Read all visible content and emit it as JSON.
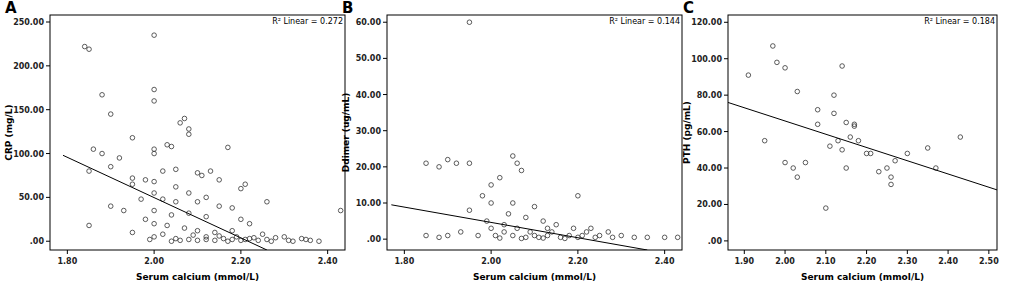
{
  "chart_data": [
    {
      "type": "scatter",
      "title": "A",
      "annotation": "R² Linear = 0.272",
      "x_label": "Serum calcium (mmol/L)",
      "y_label": "CRP (mg/L)",
      "xlim": [
        1.76,
        2.44
      ],
      "ylim": [
        -10,
        258
      ],
      "xticks": [
        {
          "value": 1.8,
          "label": "1.80"
        },
        {
          "value": 2.0,
          "label": "2.00"
        },
        {
          "value": 2.2,
          "label": "2.20"
        },
        {
          "value": 2.4,
          "label": "2.40"
        }
      ],
      "yticks": [
        {
          "value": 0,
          "label": ".00"
        },
        {
          "value": 50,
          "label": "50.00"
        },
        {
          "value": 100,
          "label": "100.00"
        },
        {
          "value": 150,
          "label": "150.00"
        },
        {
          "value": 200,
          "label": "200.00"
        },
        {
          "value": 250,
          "label": "250.00"
        }
      ],
      "marker": "circle",
      "color": "#333333",
      "x": [
        1.84,
        1.85,
        2.0,
        2.0,
        1.88,
        2.0,
        1.9,
        2.07,
        2.06,
        2.08,
        2.08,
        1.95,
        2.03,
        2.04,
        2.0,
        2.0,
        2.17,
        1.86,
        1.92,
        1.88,
        1.85,
        1.9,
        2.02,
        2.05,
        2.1,
        2.11,
        1.95,
        1.98,
        2.0,
        2.15,
        2.13,
        2.05,
        1.95,
        2.0,
        2.08,
        2.2,
        2.21,
        2.12,
        2.02,
        1.97,
        2.05,
        2.1,
        2.15,
        2.18,
        2.26,
        1.9,
        1.93,
        2.0,
        2.04,
        2.08,
        2.12,
        2.2,
        2.22,
        2.43,
        1.85,
        1.98,
        2.0,
        2.03,
        2.07,
        2.1,
        2.14,
        2.18,
        2.25,
        2.3,
        2.34,
        2.38,
        1.95,
        2.0,
        2.02,
        2.05,
        2.08,
        2.1,
        2.12,
        2.14,
        2.16,
        2.18,
        2.2,
        2.22,
        2.24,
        2.26,
        2.28,
        2.31,
        2.35,
        2.12,
        2.15,
        2.09,
        2.06,
        2.04,
        1.99,
        2.17,
        2.19,
        2.21,
        2.27,
        2.32,
        2.36,
        2.23
      ],
      "values": [
        222,
        219,
        235,
        173,
        167,
        160,
        145,
        140,
        135,
        128,
        122,
        118,
        110,
        108,
        105,
        100,
        107,
        105,
        95,
        100,
        80,
        85,
        80,
        82,
        78,
        75,
        72,
        70,
        68,
        70,
        80,
        62,
        65,
        55,
        55,
        60,
        65,
        50,
        48,
        48,
        45,
        45,
        40,
        38,
        45,
        40,
        35,
        35,
        30,
        32,
        28,
        25,
        20,
        35,
        18,
        25,
        20,
        18,
        15,
        12,
        10,
        12,
        8,
        5,
        3,
        0,
        10,
        5,
        8,
        3,
        2,
        1,
        2,
        1,
        3,
        2,
        1,
        3,
        1,
        2,
        4,
        1,
        2,
        5,
        6,
        7,
        1,
        0,
        2,
        0,
        5,
        2,
        0,
        0,
        1,
        4
      ],
      "trendline": {
        "x": [
          1.79,
          2.26
        ],
        "values": [
          98,
          -10
        ]
      }
    },
    {
      "type": "scatter",
      "title": "B",
      "annotation": "R² Linear = 0.144",
      "x_label": "Serum calcium (mmol/L)",
      "y_label": "Ddimer (ug/mL)",
      "xlim": [
        1.76,
        2.44
      ],
      "ylim": [
        -3,
        62
      ],
      "xticks": [
        {
          "value": 1.8,
          "label": "1.80"
        },
        {
          "value": 2.0,
          "label": "2.00"
        },
        {
          "value": 2.2,
          "label": "2.20"
        },
        {
          "value": 2.4,
          "label": "2.40"
        }
      ],
      "yticks": [
        {
          "value": 0,
          "label": ".00"
        },
        {
          "value": 10,
          "label": "10.00"
        },
        {
          "value": 20,
          "label": "20.00"
        },
        {
          "value": 30,
          "label": "30.00"
        },
        {
          "value": 40,
          "label": "40.00"
        },
        {
          "value": 50,
          "label": "50.00"
        },
        {
          "value": 60,
          "label": "60.00"
        }
      ],
      "marker": "circle",
      "color": "#333333",
      "x": [
        1.95,
        1.85,
        1.9,
        1.92,
        1.95,
        1.88,
        2.05,
        2.06,
        2.07,
        2.0,
        2.02,
        1.95,
        2.0,
        1.98,
        2.2,
        2.05,
        2.1,
        2.04,
        2.08,
        2.12,
        2.15,
        1.85,
        1.88,
        1.9,
        1.93,
        1.97,
        2.0,
        2.01,
        2.03,
        2.05,
        2.06,
        2.09,
        2.1,
        2.11,
        2.13,
        2.14,
        2.16,
        2.18,
        2.19,
        2.2,
        2.21,
        2.22,
        2.24,
        2.25,
        2.28,
        2.3,
        2.33,
        2.36,
        2.4,
        2.43,
        2.02,
        2.07,
        2.12,
        2.17,
        1.99,
        2.03,
        2.13,
        2.23,
        2.27,
        2.08
      ],
      "values": [
        60,
        21,
        22,
        21,
        21,
        20,
        23,
        21,
        19,
        15,
        17,
        8,
        10,
        12,
        12,
        10,
        9,
        7,
        6,
        5,
        4,
        1,
        0.5,
        1,
        2,
        1,
        3,
        1,
        2,
        1,
        3,
        2,
        1,
        0.5,
        1,
        2,
        0.5,
        1,
        3,
        0.5,
        1,
        2,
        0.5,
        1,
        0.5,
        1,
        0.5,
        0.5,
        0.5,
        0.5,
        0.3,
        0.2,
        0.3,
        0.2,
        5,
        4,
        3,
        3,
        2,
        0.5
      ],
      "trendline": {
        "x": [
          1.77,
          2.36
        ],
        "values": [
          9.5,
          -3
        ]
      }
    },
    {
      "type": "scatter",
      "title": "C",
      "annotation": "R² Linear = 0.184",
      "x_label": "Serum calcium (mmol/L)",
      "y_label": "PTH (pg/mL)",
      "xlim": [
        1.86,
        2.52
      ],
      "ylim": [
        -5,
        124
      ],
      "xticks": [
        {
          "value": 1.9,
          "label": "1.90"
        },
        {
          "value": 2.0,
          "label": "2.00"
        },
        {
          "value": 2.1,
          "label": "2.10"
        },
        {
          "value": 2.2,
          "label": "2.20"
        },
        {
          "value": 2.3,
          "label": "2.30"
        },
        {
          "value": 2.4,
          "label": "2.40"
        },
        {
          "value": 2.5,
          "label": "2.50"
        }
      ],
      "yticks": [
        {
          "value": 0,
          "label": ".00"
        },
        {
          "value": 20,
          "label": "20.00"
        },
        {
          "value": 40,
          "label": "40.00"
        },
        {
          "value": 60,
          "label": "60.00"
        },
        {
          "value": 80,
          "label": "80.00"
        },
        {
          "value": 100,
          "label": "100.00"
        },
        {
          "value": 120,
          "label": "120.00"
        }
      ],
      "marker": "circle",
      "color": "#333333",
      "x": [
        1.91,
        1.97,
        2.0,
        1.98,
        1.95,
        2.0,
        2.02,
        2.03,
        2.03,
        2.05,
        2.08,
        2.08,
        2.1,
        2.11,
        2.12,
        2.12,
        2.13,
        2.14,
        2.14,
        2.15,
        2.15,
        2.16,
        2.17,
        2.17,
        2.18,
        2.2,
        2.21,
        2.23,
        2.25,
        2.26,
        2.26,
        2.27,
        2.3,
        2.35,
        2.37,
        2.43
      ],
      "values": [
        91,
        107,
        95,
        98,
        55,
        43,
        40,
        35,
        82,
        43,
        72,
        64,
        18,
        52,
        80,
        70,
        55,
        96,
        50,
        65,
        40,
        57,
        64,
        63,
        55,
        48,
        48,
        38,
        40,
        35,
        31,
        44,
        48,
        51,
        40,
        57
      ],
      "trendline": {
        "x": [
          1.86,
          2.52
        ],
        "values": [
          76,
          28
        ]
      }
    }
  ]
}
